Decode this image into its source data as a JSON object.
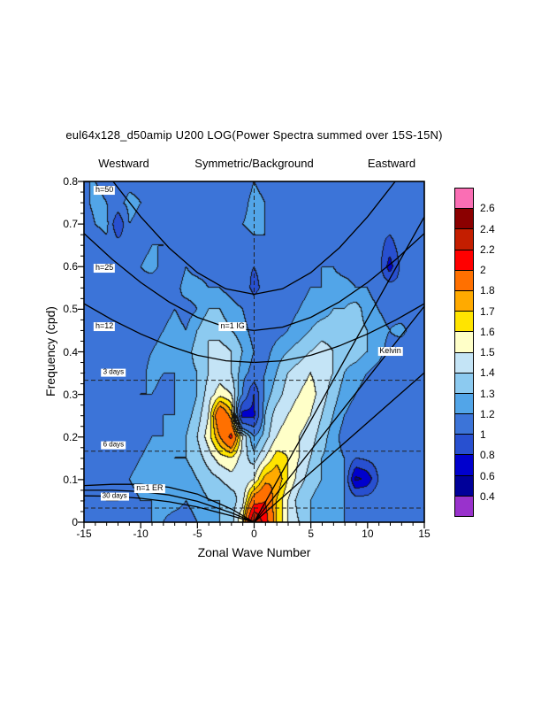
{
  "header": {
    "title": "eul64x128_d50amip U200 LOG(Power Spectra summed over 15S-15N)",
    "westward": "Westward",
    "symmetry": "Symmetric/Background",
    "eastward": "Eastward"
  },
  "axes": {
    "x": {
      "label": "Zonal Wave Number",
      "tick_values": [
        -15,
        -10,
        -5,
        0,
        5,
        10,
        15
      ],
      "tick_labels": [
        "-15",
        "-10",
        "-5",
        "0",
        "5",
        "10",
        "15"
      ],
      "minor_step": 1
    },
    "y": {
      "label": "Frequency (cpd)",
      "tick_values": [
        0,
        0.1,
        0.2,
        0.3,
        0.4,
        0.5,
        0.6,
        0.7,
        0.8
      ],
      "tick_labels": [
        "0",
        "0.1",
        "0.2",
        "0.3",
        "0.4",
        "0.5",
        "0.6",
        "0.7",
        "0.8"
      ],
      "minor_step": 0.025
    }
  },
  "colorbar": {
    "boundary_labels": [
      "2.6",
      "2.4",
      "2.2",
      "2",
      "1.8",
      "1.7",
      "1.6",
      "1.5",
      "1.4",
      "1.3",
      "1.2",
      "1",
      "0.8",
      "0.6",
      "0.4"
    ]
  },
  "chart_data": {
    "type": "filled_contour",
    "description": "Wavenumber-frequency power spectrum (symmetric/background), LOG power summed 15S-15N",
    "x_range": [
      -15,
      15
    ],
    "y_range": [
      0,
      0.8
    ],
    "levels": [
      0.4,
      0.6,
      0.8,
      1,
      1.2,
      1.3,
      1.4,
      1.5,
      1.6,
      1.7,
      1.8,
      2,
      2.2,
      2.4,
      2.6
    ],
    "palette_low_to_high": [
      "#9932CC",
      "#000099",
      "#0000CD",
      "#2850D0",
      "#3C74D8",
      "#52A5E8",
      "#8CCAF0",
      "#C4E4F6",
      "#FFFFC8",
      "#FFE400",
      "#FFAA00",
      "#FF7000",
      "#FF0000",
      "#C41E00",
      "#8B0000",
      "#FA6EB4"
    ],
    "contour_line_color": "#141414",
    "grid": {
      "x_start": -15,
      "x_step": 1,
      "y_start": 0,
      "y_step": 0.05,
      "rows_order": "bottom_to_top",
      "values": [
        [
          1.15,
          1.15,
          1.2,
          1.15,
          1.15,
          1.15,
          1.2,
          1.2,
          1.15,
          1.15,
          1.2,
          1.25,
          1.3,
          1.35,
          1.6,
          2.45,
          2.1,
          1.7,
          1.5,
          1.4,
          1.3,
          1.25,
          1.2,
          1.2,
          1.15,
          1.15,
          1.15,
          1.15,
          1.15,
          1.15,
          1.15
        ],
        [
          1.2,
          1.15,
          1.2,
          1.2,
          1.15,
          1.2,
          1.2,
          1.25,
          1.25,
          1.2,
          1.25,
          1.3,
          1.3,
          1.35,
          1.45,
          1.9,
          2.0,
          1.7,
          1.5,
          1.35,
          1.3,
          1.25,
          1.2,
          1.2,
          1.1,
          1.1,
          1.15,
          1.15,
          1.2,
          1.15,
          1.15
        ],
        [
          1.15,
          1.2,
          1.15,
          1.15,
          1.2,
          1.25,
          1.2,
          1.2,
          1.25,
          1.25,
          1.3,
          1.35,
          1.4,
          1.45,
          1.4,
          1.5,
          1.75,
          1.8,
          1.6,
          1.45,
          1.35,
          1.3,
          1.25,
          1.2,
          0.55,
          0.65,
          1.0,
          1.1,
          1.15,
          1.15,
          1.1
        ],
        [
          1.1,
          1.15,
          1.2,
          1.15,
          1.15,
          1.2,
          1.25,
          1.25,
          1.3,
          1.3,
          1.35,
          1.45,
          1.55,
          1.6,
          1.45,
          1.35,
          1.5,
          1.65,
          1.6,
          1.5,
          1.4,
          1.3,
          1.25,
          1.2,
          1.0,
          1.05,
          1.1,
          1.1,
          1.1,
          1.1,
          1.1
        ],
        [
          1.1,
          1.1,
          1.15,
          1.2,
          1.15,
          1.15,
          1.2,
          1.2,
          1.25,
          1.3,
          1.4,
          1.55,
          1.8,
          2.05,
          1.5,
          1.2,
          1.35,
          1.5,
          1.55,
          1.5,
          1.45,
          1.35,
          1.25,
          1.15,
          1.1,
          1.1,
          1.05,
          1.1,
          1.1,
          1.15,
          1.1
        ],
        [
          1.1,
          1.1,
          1.1,
          1.15,
          1.2,
          1.15,
          1.15,
          1.2,
          1.2,
          1.25,
          1.35,
          1.5,
          2.0,
          1.75,
          0.7,
          0.75,
          1.3,
          1.45,
          1.5,
          1.55,
          1.5,
          1.4,
          1.3,
          1.2,
          1.15,
          1.1,
          1.1,
          1.05,
          1.1,
          1.1,
          1.1
        ],
        [
          1.15,
          1.1,
          1.1,
          1.1,
          1.15,
          1.2,
          1.2,
          1.15,
          1.2,
          1.2,
          1.3,
          1.45,
          1.55,
          1.5,
          1.2,
          0.8,
          1.25,
          1.35,
          1.45,
          1.5,
          1.55,
          1.45,
          1.35,
          1.25,
          1.2,
          1.15,
          1.1,
          1.05,
          1.1,
          1.1,
          1.15
        ],
        [
          1.2,
          1.15,
          1.1,
          1.1,
          1.1,
          1.15,
          1.25,
          1.2,
          1.2,
          1.25,
          1.3,
          1.4,
          1.45,
          1.4,
          1.25,
          1.15,
          1.2,
          1.3,
          1.4,
          1.45,
          1.5,
          1.45,
          1.4,
          1.3,
          1.25,
          1.2,
          1.15,
          1.1,
          1.1,
          1.05,
          1.1
        ],
        [
          1.15,
          1.2,
          1.15,
          1.1,
          1.1,
          1.15,
          1.2,
          1.25,
          1.2,
          1.25,
          1.35,
          1.4,
          1.45,
          1.4,
          1.3,
          1.2,
          1.15,
          1.25,
          1.3,
          1.35,
          1.4,
          1.45,
          1.4,
          1.35,
          1.35,
          1.3,
          1.25,
          1.15,
          1.1,
          1.1,
          1.1
        ],
        [
          1.1,
          1.15,
          1.2,
          1.15,
          1.1,
          1.1,
          1.15,
          1.2,
          1.25,
          1.2,
          1.3,
          1.4,
          1.35,
          1.3,
          1.25,
          1.15,
          1.1,
          1.15,
          1.2,
          1.25,
          1.3,
          1.35,
          1.35,
          1.4,
          1.35,
          1.3,
          1.25,
          1.2,
          1.25,
          1.15,
          1.1
        ],
        [
          1.1,
          1.1,
          1.15,
          1.1,
          1.15,
          1.1,
          1.1,
          1.15,
          1.2,
          1.15,
          1.2,
          1.3,
          1.3,
          1.25,
          1.2,
          1.1,
          1.1,
          1.1,
          1.15,
          1.2,
          1.25,
          1.25,
          1.3,
          1.3,
          1.35,
          1.25,
          1.2,
          1.15,
          1.1,
          1.1,
          1.15
        ],
        [
          1.15,
          1.1,
          1.1,
          1.1,
          1.2,
          1.15,
          1.1,
          1.1,
          1.15,
          1.25,
          1.25,
          1.2,
          1.2,
          1.15,
          1.1,
          0.95,
          1.05,
          1.1,
          1.1,
          1.15,
          1.2,
          1.2,
          1.25,
          1.25,
          1.2,
          1.2,
          1.15,
          1.1,
          1.05,
          1.1,
          1.1
        ],
        [
          1.1,
          1.15,
          1.1,
          1.05,
          1.1,
          1.2,
          1.25,
          1.15,
          1.1,
          1.2,
          1.15,
          1.15,
          1.1,
          1.1,
          1.05,
          1.0,
          1.05,
          1.1,
          1.05,
          1.1,
          1.15,
          1.2,
          1.2,
          1.15,
          1.15,
          1.1,
          1.1,
          0.7,
          1.05,
          1.1,
          1.1
        ],
        [
          1.1,
          1.1,
          1.15,
          1.1,
          1.1,
          1.15,
          1.2,
          1.2,
          1.15,
          1.1,
          1.1,
          1.1,
          1.05,
          1.1,
          1.1,
          1.15,
          1.2,
          1.1,
          1.15,
          1.1,
          1.1,
          1.15,
          1.1,
          1.1,
          1.1,
          1.05,
          1.1,
          0.9,
          1.1,
          1.05,
          1.1
        ],
        [
          1.1,
          1.2,
          1.25,
          0.8,
          1.2,
          1.15,
          1.1,
          1.1,
          1.15,
          1.1,
          1.05,
          1.1,
          1.1,
          1.15,
          1.2,
          1.25,
          1.2,
          1.15,
          1.2,
          1.1,
          1.1,
          1.05,
          1.1,
          1.15,
          1.1,
          1.1,
          1.05,
          1.1,
          1.15,
          1.1,
          1.1
        ],
        [
          1.15,
          1.25,
          1.2,
          1.15,
          1.25,
          1.2,
          1.15,
          1.1,
          1.1,
          1.15,
          1.1,
          1.1,
          1.15,
          1.1,
          1.15,
          1.25,
          1.2,
          1.1,
          1.15,
          1.15,
          1.1,
          1.1,
          1.15,
          1.1,
          1.05,
          1.1,
          1.1,
          1.15,
          1.1,
          1.2,
          1.15
        ],
        [
          1.2,
          1.2,
          1.15,
          1.1,
          1.15,
          1.15,
          1.1,
          1.15,
          1.1,
          1.1,
          1.15,
          1.1,
          1.1,
          1.15,
          1.1,
          1.2,
          1.15,
          1.1,
          1.1,
          1.2,
          1.15,
          1.1,
          1.1,
          1.1,
          1.15,
          1.1,
          1.1,
          1.1,
          1.15,
          1.15,
          1.1
        ]
      ]
    },
    "dispersion_curves": [
      {
        "name": "kelvin-h50",
        "points": [
          [
            0,
            0
          ],
          [
            15,
            0.717
          ]
        ]
      },
      {
        "name": "kelvin-h25",
        "points": [
          [
            0,
            0
          ],
          [
            15,
            0.507
          ]
        ]
      },
      {
        "name": "kelvin-h12",
        "points": [
          [
            0,
            0
          ],
          [
            15,
            0.351
          ]
        ]
      },
      {
        "name": "ig-n1-h50",
        "points": [
          [
            -15,
            0.895
          ],
          [
            -12.5,
            0.802
          ],
          [
            -10,
            0.717
          ],
          [
            -7.5,
            0.644
          ],
          [
            -5,
            0.586
          ],
          [
            -2.5,
            0.548
          ],
          [
            0,
            0.535
          ],
          [
            2.5,
            0.548
          ],
          [
            5,
            0.586
          ],
          [
            7.5,
            0.644
          ],
          [
            10,
            0.717
          ],
          [
            12.5,
            0.802
          ],
          [
            15,
            0.895
          ]
        ]
      },
      {
        "name": "ig-n1-h25",
        "points": [
          [
            -15,
            0.678
          ],
          [
            -12.5,
            0.617
          ],
          [
            -10,
            0.563
          ],
          [
            -7.5,
            0.517
          ],
          [
            -5,
            0.481
          ],
          [
            -2.5,
            0.458
          ],
          [
            0,
            0.45
          ],
          [
            2.5,
            0.458
          ],
          [
            5,
            0.481
          ],
          [
            7.5,
            0.517
          ],
          [
            10,
            0.563
          ],
          [
            12.5,
            0.617
          ],
          [
            15,
            0.678
          ]
        ]
      },
      {
        "name": "ig-n1-h12",
        "points": [
          [
            -15,
            0.513
          ],
          [
            -12.5,
            0.475
          ],
          [
            -10,
            0.442
          ],
          [
            -7.5,
            0.414
          ],
          [
            -5,
            0.392
          ],
          [
            -2.5,
            0.379
          ],
          [
            0,
            0.375
          ],
          [
            2.5,
            0.379
          ],
          [
            5,
            0.392
          ],
          [
            7.5,
            0.414
          ],
          [
            10,
            0.442
          ],
          [
            12.5,
            0.475
          ],
          [
            15,
            0.513
          ]
        ]
      },
      {
        "name": "er-n1-h50",
        "points": [
          [
            0,
            0
          ],
          [
            -2,
            0.031
          ],
          [
            -5,
            0.066
          ],
          [
            -7.5,
            0.082
          ],
          [
            -10,
            0.089
          ],
          [
            -12.5,
            0.089
          ],
          [
            -15,
            0.086
          ]
        ]
      },
      {
        "name": "er-n1-h25",
        "points": [
          [
            0,
            0
          ],
          [
            -2,
            0.022
          ],
          [
            -5,
            0.049
          ],
          [
            -7.5,
            0.064
          ],
          [
            -10,
            0.072
          ],
          [
            -12.5,
            0.075
          ],
          [
            -15,
            0.075
          ]
        ]
      },
      {
        "name": "er-n1-h12",
        "points": [
          [
            0,
            0
          ],
          [
            -2,
            0.015
          ],
          [
            -5,
            0.036
          ],
          [
            -7.5,
            0.048
          ],
          [
            -10,
            0.056
          ],
          [
            -12.5,
            0.061
          ],
          [
            -15,
            0.062
          ]
        ]
      }
    ],
    "reference_lines": {
      "horizontal": [
        {
          "label": "3 days",
          "freq": 0.3333
        },
        {
          "label": "6 days",
          "freq": 0.1667
        },
        {
          "label": "30 days",
          "freq": 0.0333
        }
      ],
      "vertical_wavenumber": 0
    },
    "annotations": [
      {
        "text": "h=50",
        "k": -13.2,
        "f": 0.779,
        "size": 9
      },
      {
        "text": "h=25",
        "k": -13.2,
        "f": 0.596,
        "size": 9
      },
      {
        "text": "h=12",
        "k": -13.2,
        "f": 0.46,
        "size": 9
      },
      {
        "text": "n=1 IG",
        "k": -1.9,
        "f": 0.459,
        "size": 9
      },
      {
        "text": "Kelvin",
        "k": 12,
        "f": 0.401,
        "size": 9
      },
      {
        "text": "n=1 ER",
        "k": -9.2,
        "f": 0.078,
        "size": 9
      },
      {
        "text": "3 days",
        "k": -12.4,
        "f": 0.351,
        "size": 8
      },
      {
        "text": "6 days",
        "k": -12.4,
        "f": 0.181,
        "size": 8
      },
      {
        "text": "30 days",
        "k": -12.3,
        "f": 0.06,
        "size": 8
      }
    ]
  }
}
